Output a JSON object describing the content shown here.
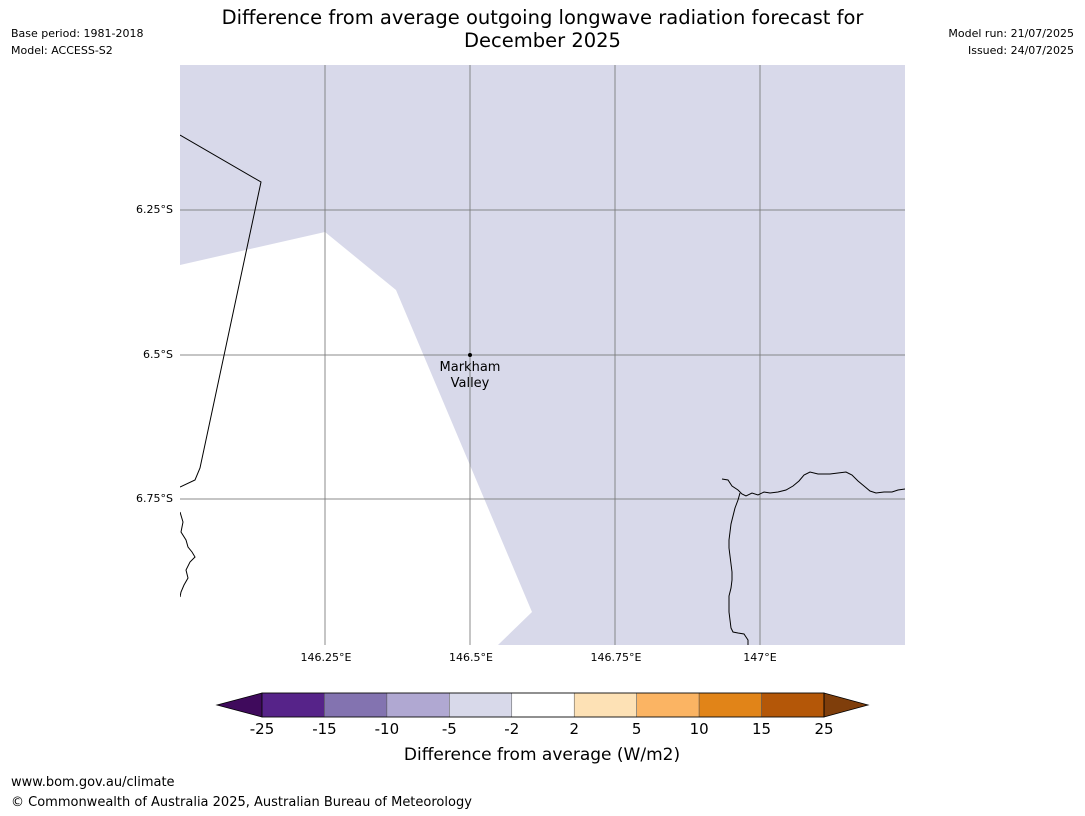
{
  "meta_left": {
    "base_period": "Base period: 1981-2018",
    "model": "Model: ACCESS-S2"
  },
  "meta_right": {
    "model_run": "Model run: 21/07/2025",
    "issued": "Issued: 24/07/2025"
  },
  "title": {
    "line1": "Difference from average outgoing longwave radiation forecast for",
    "line2": "December 2025"
  },
  "map": {
    "lat_labels": [
      "6.25°S",
      "6.5°S",
      "6.75°S"
    ],
    "lon_labels": [
      "146.25°E",
      "146.5°E",
      "146.75°E",
      "147°E"
    ],
    "place": {
      "line1": "Markham",
      "line2": "Valley"
    },
    "colors": {
      "shaded": "#d8d9ea",
      "grid": "#777777",
      "coast": "#000000"
    }
  },
  "colorbar": {
    "ticks": [
      "-25",
      "-15",
      "-10",
      "-5",
      "-2",
      "2",
      "5",
      "10",
      "15",
      "25"
    ],
    "colors": [
      "#3f0a5c",
      "#562389",
      "#8373b0",
      "#b0a8d2",
      "#d8d9ea",
      "#ffffff",
      "#fde1b5",
      "#fbb463",
      "#e18418",
      "#b45708",
      "#7f3e0b"
    ],
    "label": "Difference from average (W/m2)"
  },
  "footer": {
    "url": "www.bom.gov.au/climate",
    "copyright": "© Commonwealth of Australia 2025, Australian Bureau of Meteorology"
  }
}
